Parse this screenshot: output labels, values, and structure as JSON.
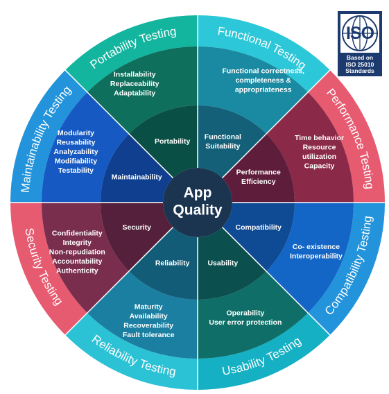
{
  "center": {
    "line1": "App",
    "line2": "Quality"
  },
  "segments": [
    {
      "id": "functional",
      "outer_label": "Functional Testing",
      "middle": [
        "Functional correctness,",
        "completeness &",
        "appropriateness"
      ],
      "inner": [
        "Functional",
        "Suitability"
      ],
      "colors": {
        "outer": "#2cc7d8",
        "middle": "#1a8aa2",
        "inner": "#146079"
      }
    },
    {
      "id": "performance",
      "outer_label": "Performance Testing",
      "middle": [
        "Time behavior",
        "Resource",
        "utilization",
        "Capacity"
      ],
      "inner": [
        "Performance",
        "Efficiency"
      ],
      "colors": {
        "outer": "#e75b70",
        "middle": "#8a2a48",
        "inner": "#5e1d3a"
      }
    },
    {
      "id": "compatibility",
      "outer_label": "Compatibility Testing",
      "middle": [
        "Co- existence",
        "Interoperability"
      ],
      "inner": [
        "Compatibility"
      ],
      "colors": {
        "outer": "#2394db",
        "middle": "#1366c6",
        "inner": "#0f4a94"
      }
    },
    {
      "id": "usability",
      "outer_label": "Usability Testing",
      "middle": [
        "Operability",
        "User error protection"
      ],
      "inner": [
        "Usability"
      ],
      "colors": {
        "outer": "#15b0c3",
        "middle": "#0f6f68",
        "inner": "#0b4f4e"
      }
    },
    {
      "id": "reliability",
      "outer_label": "Reliability Testing",
      "middle": [
        "Maturity",
        "Availability",
        "Recoverability",
        "Fault tolerance"
      ],
      "inner": [
        "Reliability"
      ],
      "colors": {
        "outer": "#2cc2d6",
        "middle": "#1a7fa0",
        "inner": "#135c78"
      }
    },
    {
      "id": "security",
      "outer_label": "Security Testing",
      "middle": [
        "Confidentiality",
        "Integrity",
        "Non-repudiation",
        "Accountability",
        "Authenticity"
      ],
      "inner": [
        "Security"
      ],
      "colors": {
        "outer": "#e75b70",
        "middle": "#7a2e4e",
        "inner": "#55203b"
      }
    },
    {
      "id": "maintainability",
      "outer_label": "Maintainability Testing",
      "middle": [
        "Modularity",
        "Reusability",
        "Analyzability",
        "Modifiability",
        "Testability"
      ],
      "inner": [
        "Maintainability"
      ],
      "colors": {
        "outer": "#2394db",
        "middle": "#1659c2",
        "inner": "#103f8f"
      }
    },
    {
      "id": "portability",
      "outer_label": "Portability Testing",
      "middle": [
        "Installability",
        "Replaceability",
        "Adaptability"
      ],
      "inner": [
        "Portability"
      ],
      "colors": {
        "outer": "#14b59e",
        "middle": "#0e6f5c",
        "inner": "#0a4f45"
      }
    }
  ],
  "iso_badge": {
    "logo_text": "ISO",
    "caption": [
      "Based on",
      "ISO 25010",
      "Standards"
    ]
  }
}
